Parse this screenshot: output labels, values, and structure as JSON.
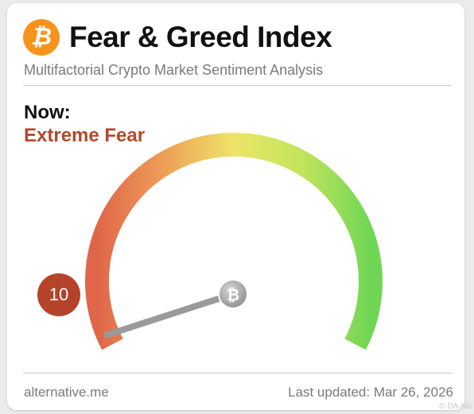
{
  "header": {
    "logo_glyph": "₿",
    "title": "Fear & Greed Index",
    "subtitle": "Multifactorial Crypto Market Sentiment Analysis"
  },
  "sentiment": {
    "now_label": "Now:",
    "classification": "Extreme Fear",
    "value": "10",
    "value_fraction": 0.1
  },
  "gauge": {
    "min": 0,
    "max": 100,
    "hub_glyph": "₿",
    "colors": {
      "fear": "#e0664a",
      "neutral": "#eee468",
      "greed": "#6fd655",
      "needle": "#9a9a9a",
      "badge": "#b5432a"
    }
  },
  "footer": {
    "source": "alternative.me",
    "last_updated": "Last updated: Mar 26, 2026"
  },
  "watermark": "© DA-Nic",
  "colors": {
    "bitcoin_orange": "#f7931a",
    "status_red": "#b3482c"
  }
}
